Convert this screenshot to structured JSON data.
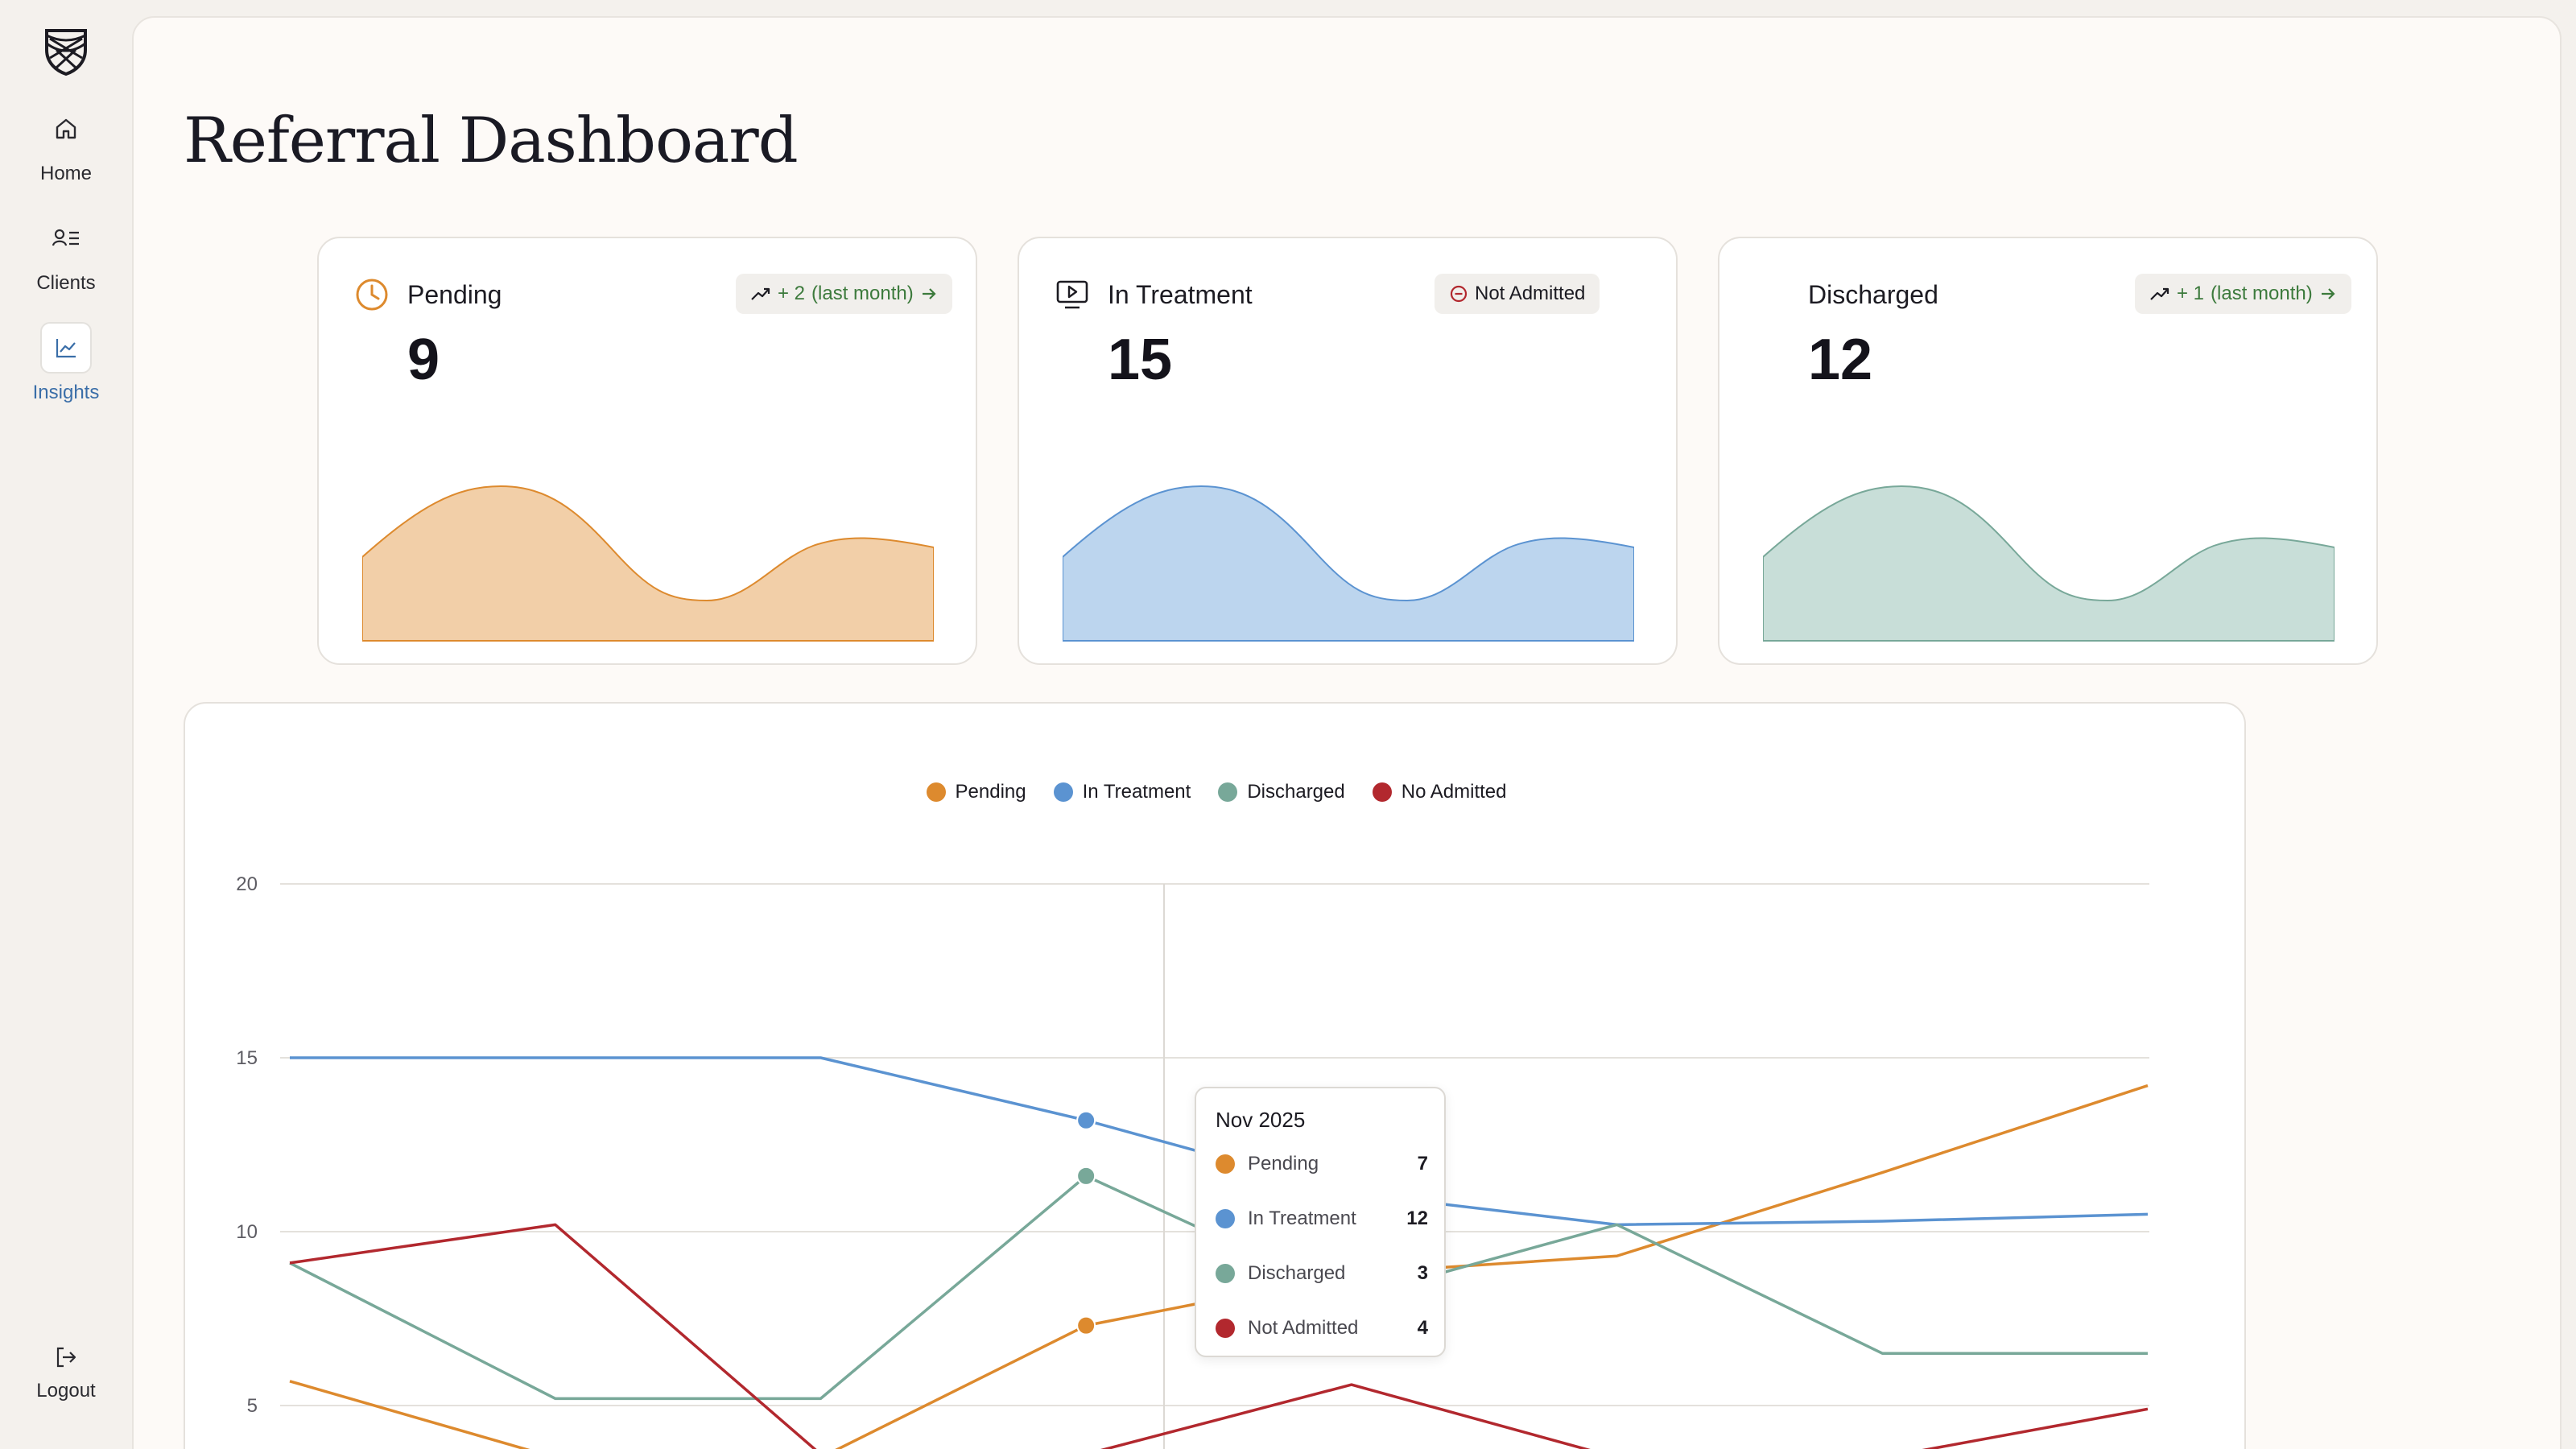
{
  "sidebar": {
    "items": [
      {
        "label": "Home",
        "icon": "home-icon"
      },
      {
        "label": "Clients",
        "icon": "clients-icon"
      },
      {
        "label": "Insights",
        "icon": "insights-icon",
        "active": true
      }
    ],
    "logout_label": "Logout"
  },
  "page": {
    "title": "Referral Dashboard"
  },
  "cards": [
    {
      "label": "Pending",
      "value": "9",
      "badge_delta": "+ 2",
      "badge_period": "(last month)",
      "color": "#dd8a2e",
      "fill": "#f2cfa8",
      "icon": "clock-icon"
    },
    {
      "label": "In Treatment",
      "value": "15",
      "badge_text": "Not Admitted",
      "color": "#5b93d1",
      "fill": "#bcd5ee",
      "icon": "monitor-play-icon"
    },
    {
      "label": "Discharged",
      "value": "12",
      "badge_delta": "+ 1",
      "badge_period": "(last month)",
      "color": "#78a899",
      "fill": "#c8ded8"
    }
  ],
  "chart_data": {
    "type": "line",
    "legend_position": "top-center",
    "grid": true,
    "ylim": [
      0,
      20
    ],
    "y_ticks": [
      "20",
      "15",
      "10",
      "5"
    ],
    "series": [
      {
        "name": "Pending",
        "color": "#dd8a2e",
        "values": [
          5.7,
          3.5,
          3.5,
          7.3,
          8.8,
          9.3,
          11.7,
          14.2
        ]
      },
      {
        "name": "In Treatment",
        "color": "#5b93d1",
        "values": [
          15,
          15,
          15,
          13.2,
          11.1,
          10.2,
          10.3,
          10.5
        ]
      },
      {
        "name": "Discharged",
        "color": "#78a899",
        "values": [
          9.1,
          5.2,
          5.2,
          11.6,
          8.1,
          10.2,
          6.5,
          6.5
        ]
      },
      {
        "name": "No Admitted",
        "color": "#b2282e",
        "values": [
          9.1,
          10.2,
          3.6,
          3.6,
          5.6,
          3.5,
          3.5,
          4.9
        ]
      }
    ]
  },
  "tooltip": {
    "title": "Nov 2025",
    "rows": [
      {
        "name": "Pending",
        "value": "7",
        "color": "#dd8a2e"
      },
      {
        "name": "In Treatment",
        "value": "12",
        "color": "#5b93d1"
      },
      {
        "name": "Discharged",
        "value": "3",
        "color": "#78a899"
      },
      {
        "name": "Not Admitted",
        "value": "4",
        "color": "#b2282e"
      }
    ]
  }
}
